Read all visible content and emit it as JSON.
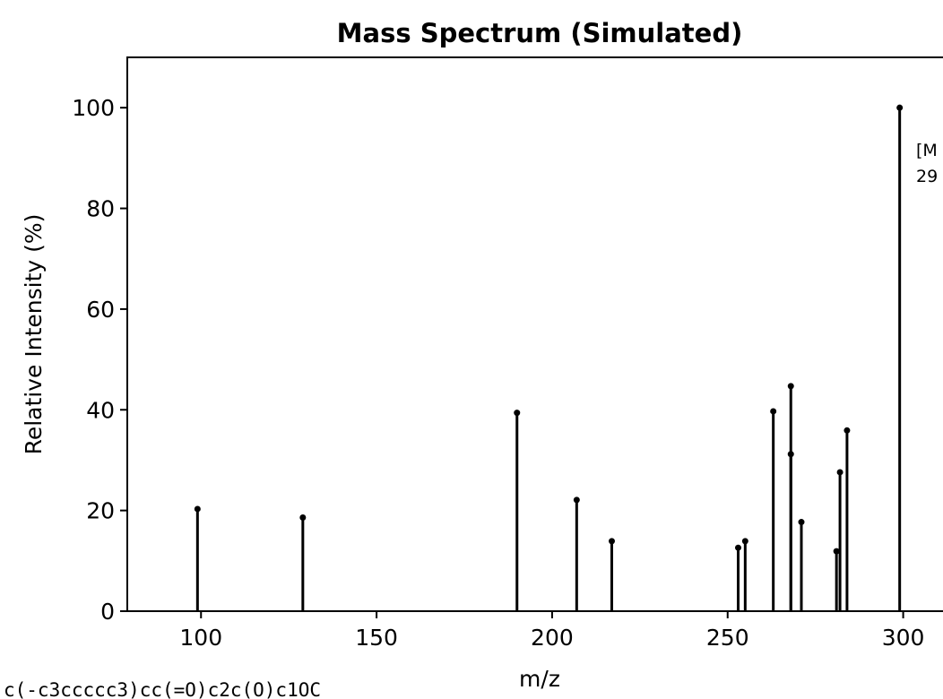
{
  "chart_data": {
    "type": "bar",
    "title": "Mass Spectrum (Simulated)",
    "xlabel": "m/z",
    "ylabel": "Relative Intensity (%)",
    "xlim": [
      79,
      319
    ],
    "ylim": [
      0,
      110
    ],
    "xticks": [
      100,
      150,
      200,
      250,
      300
    ],
    "yticks": [
      0,
      20,
      40,
      60,
      80,
      100
    ],
    "grid": false,
    "peaks": [
      {
        "mz": 99,
        "intensity": 20.3
      },
      {
        "mz": 129,
        "intensity": 18.6
      },
      {
        "mz": 190,
        "intensity": 39.4
      },
      {
        "mz": 207,
        "intensity": 22.1
      },
      {
        "mz": 217,
        "intensity": 13.9
      },
      {
        "mz": 253,
        "intensity": 12.6
      },
      {
        "mz": 255,
        "intensity": 13.9
      },
      {
        "mz": 263,
        "intensity": 39.7
      },
      {
        "mz": 268,
        "intensity": 44.7
      },
      {
        "mz": 268,
        "intensity": 31.2
      },
      {
        "mz": 271,
        "intensity": 17.7
      },
      {
        "mz": 281,
        "intensity": 11.9
      },
      {
        "mz": 282,
        "intensity": 27.6
      },
      {
        "mz": 284,
        "intensity": 35.9
      },
      {
        "mz": 299,
        "intensity": 100
      }
    ],
    "annotation": {
      "line1": "[M",
      "line2": "29"
    }
  },
  "footer_text": "c(-c3ccccc3)cc(=O)c2c(O)c1OC"
}
